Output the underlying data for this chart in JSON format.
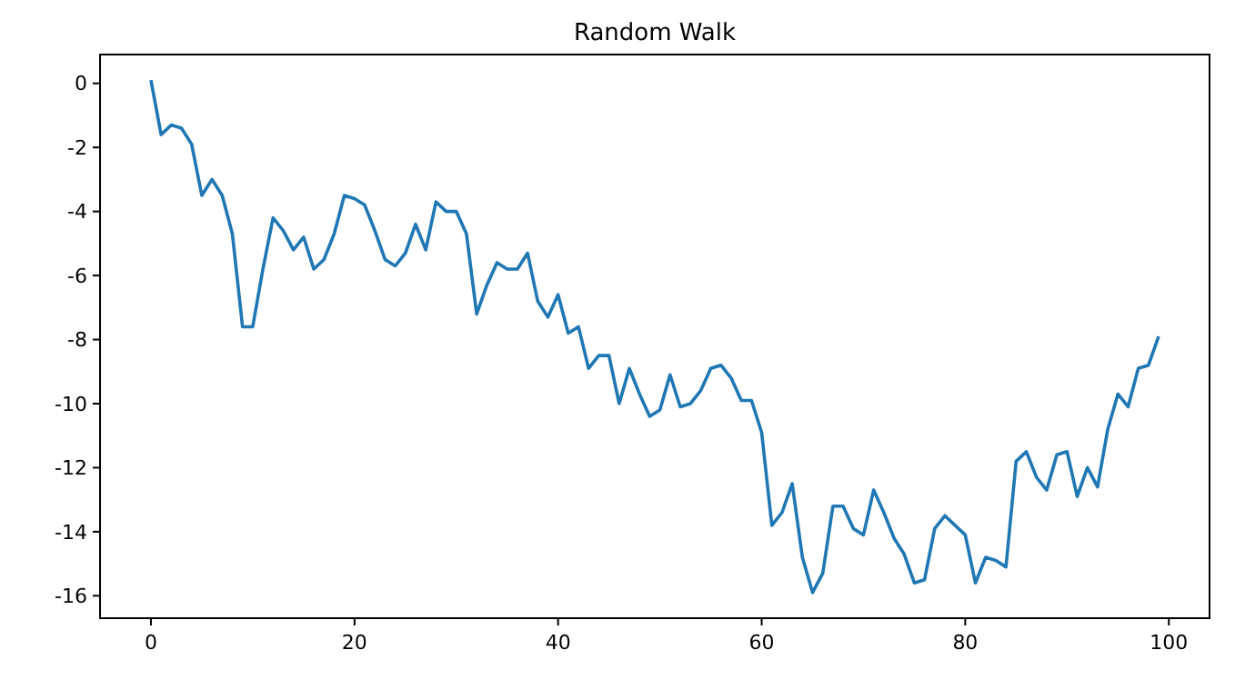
{
  "chart_data": {
    "type": "line",
    "title": "Random Walk",
    "x": [
      0,
      1,
      2,
      3,
      4,
      5,
      6,
      7,
      8,
      9,
      10,
      11,
      12,
      13,
      14,
      15,
      16,
      17,
      18,
      19,
      20,
      21,
      22,
      23,
      24,
      25,
      26,
      27,
      28,
      29,
      30,
      31,
      32,
      33,
      34,
      35,
      36,
      37,
      38,
      39,
      40,
      41,
      42,
      43,
      44,
      45,
      46,
      47,
      48,
      49,
      50,
      51,
      52,
      53,
      54,
      55,
      56,
      57,
      58,
      59,
      60,
      61,
      62,
      63,
      64,
      65,
      66,
      67,
      68,
      69,
      70,
      71,
      72,
      73,
      74,
      75,
      76,
      77,
      78,
      79,
      80,
      81,
      82,
      83,
      84,
      85,
      86,
      87,
      88,
      89,
      90,
      91,
      92,
      93,
      94,
      95,
      96,
      97,
      98,
      99
    ],
    "series": [
      {
        "color": "#1f77b4",
        "values": [
          0.1,
          -1.6,
          -1.3,
          -1.4,
          -1.9,
          -3.5,
          -3.0,
          -3.5,
          -4.7,
          -7.6,
          -7.6,
          -5.8,
          -4.2,
          -4.6,
          -5.2,
          -4.8,
          -5.8,
          -5.5,
          -4.7,
          -3.5,
          -3.6,
          -3.8,
          -4.6,
          -5.5,
          -5.7,
          -5.3,
          -4.4,
          -5.2,
          -3.7,
          -4.0,
          -4.0,
          -4.7,
          -7.2,
          -6.3,
          -5.6,
          -5.8,
          -5.8,
          -5.3,
          -6.8,
          -7.3,
          -6.6,
          -7.8,
          -7.6,
          -8.9,
          -8.5,
          -8.5,
          -10.0,
          -8.9,
          -9.7,
          -10.4,
          -10.2,
          -9.1,
          -10.1,
          -10.0,
          -9.6,
          -8.9,
          -8.8,
          -9.2,
          -9.9,
          -9.9,
          -10.9,
          -13.8,
          -13.4,
          -12.5,
          -14.8,
          -15.9,
          -15.3,
          -13.2,
          -13.2,
          -13.9,
          -14.1,
          -12.7,
          -13.4,
          -14.2,
          -14.7,
          -15.6,
          -15.5,
          -13.9,
          -13.5,
          -13.8,
          -14.1,
          -15.6,
          -14.8,
          -14.9,
          -15.1,
          -11.8,
          -11.5,
          -12.3,
          -12.7,
          -11.6,
          -11.5,
          -12.9,
          -12.0,
          -12.6,
          -10.8,
          -9.7,
          -10.1,
          -8.9,
          -8.8,
          -7.9
        ]
      }
    ],
    "xlim": [
      -5,
      104
    ],
    "xticks": [
      0,
      20,
      40,
      60,
      80,
      100
    ],
    "ylim": [
      -16.7,
      0.9
    ],
    "yticks": [
      -16,
      -14,
      -12,
      -10,
      -8,
      -6,
      -4,
      -2,
      0
    ]
  }
}
